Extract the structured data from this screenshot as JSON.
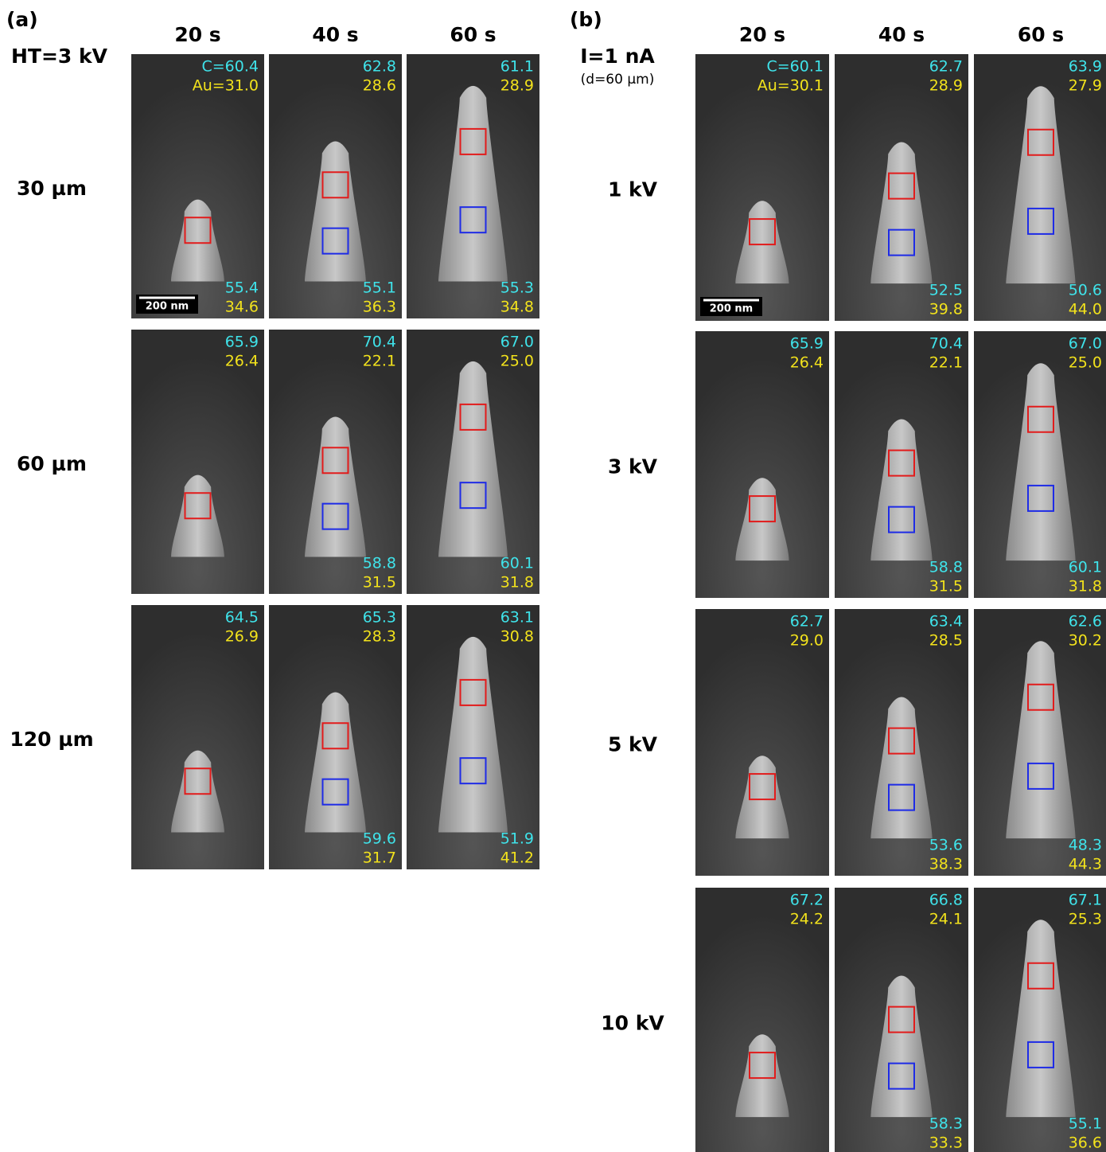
{
  "panel_a": {
    "label": "(a)",
    "corner": "HT=3 kV",
    "columns": [
      "20 s",
      "40 s",
      "60 s"
    ],
    "rows": [
      {
        "label": "30 µm",
        "cells": [
          {
            "top": [
              "C=60.4",
              "Au=31.0"
            ],
            "bottom": [
              "55.4",
              "34.6"
            ],
            "scale_bar": "200 nm"
          },
          {
            "top": [
              "62.8",
              "28.6"
            ],
            "bottom": [
              "55.1",
              "36.3"
            ]
          },
          {
            "top": [
              "61.1",
              "28.9"
            ],
            "bottom": [
              "55.3",
              "34.8"
            ]
          }
        ]
      },
      {
        "label": "60 µm",
        "cells": [
          {
            "top": [
              "65.9",
              "26.4"
            ]
          },
          {
            "top": [
              "70.4",
              "22.1"
            ],
            "bottom": [
              "58.8",
              "31.5"
            ]
          },
          {
            "top": [
              "67.0",
              "25.0"
            ],
            "bottom": [
              "60.1",
              "31.8"
            ]
          }
        ]
      },
      {
        "label": "120 µm",
        "cells": [
          {
            "top": [
              "64.5",
              "26.9"
            ]
          },
          {
            "top": [
              "65.3",
              "28.3"
            ],
            "bottom": [
              "59.6",
              "31.7"
            ]
          },
          {
            "top": [
              "63.1",
              "30.8"
            ],
            "bottom": [
              "51.9",
              "41.2"
            ]
          }
        ]
      }
    ]
  },
  "panel_b": {
    "label": "(b)",
    "corner": "I=1 nA",
    "corner_note": "(d=60 µm)",
    "columns": [
      "20 s",
      "40 s",
      "60 s"
    ],
    "rows": [
      {
        "label": "1 kV",
        "cells": [
          {
            "top": [
              "C=60.1",
              "Au=30.1"
            ],
            "scale_bar": "200 nm"
          },
          {
            "top": [
              "62.7",
              "28.9"
            ],
            "bottom": [
              "52.5",
              "39.8"
            ]
          },
          {
            "top": [
              "63.9",
              "27.9"
            ],
            "bottom": [
              "50.6",
              "44.0"
            ]
          }
        ]
      },
      {
        "label": "3 kV",
        "cells": [
          {
            "top": [
              "65.9",
              "26.4"
            ]
          },
          {
            "top": [
              "70.4",
              "22.1"
            ],
            "bottom": [
              "58.8",
              "31.5"
            ]
          },
          {
            "top": [
              "67.0",
              "25.0"
            ],
            "bottom": [
              "60.1",
              "31.8"
            ]
          }
        ]
      },
      {
        "label": "5 kV",
        "cells": [
          {
            "top": [
              "62.7",
              "29.0"
            ]
          },
          {
            "top": [
              "63.4",
              "28.5"
            ],
            "bottom": [
              "53.6",
              "38.3"
            ]
          },
          {
            "top": [
              "62.6",
              "30.2"
            ],
            "bottom": [
              "48.3",
              "44.3"
            ]
          }
        ]
      },
      {
        "label": "10 kV",
        "cells": [
          {
            "top": [
              "67.2",
              "24.2"
            ]
          },
          {
            "top": [
              "66.8",
              "24.1"
            ],
            "bottom": [
              "58.3",
              "33.3"
            ]
          },
          {
            "top": [
              "67.1",
              "25.3"
            ],
            "bottom": [
              "55.1",
              "36.6"
            ]
          }
        ]
      }
    ]
  }
}
